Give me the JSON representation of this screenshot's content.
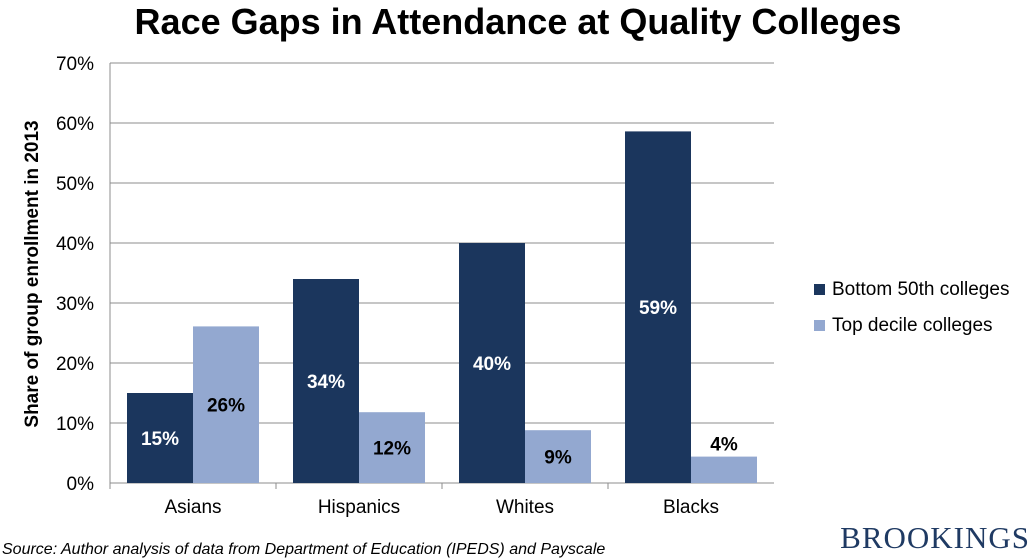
{
  "chart_data": {
    "type": "bar",
    "title": "Race Gaps in Attendance at Quality Colleges",
    "ylabel": "Share of group enrollment in 2013",
    "xlabel": "",
    "categories": [
      "Asians",
      "Hispanics",
      "Whites",
      "Blacks"
    ],
    "series": [
      {
        "name": "Bottom 50th colleges",
        "values": [
          15,
          34,
          40,
          58.6
        ],
        "labels": [
          "15%",
          "34%",
          "40%",
          "59%"
        ],
        "color": "#1b365d",
        "label_color": "#ffffff"
      },
      {
        "name": "Top decile colleges",
        "values": [
          26.1,
          11.8,
          8.8,
          4.4
        ],
        "labels": [
          "26%",
          "12%",
          "9%",
          "4%"
        ],
        "color": "#93a8d0",
        "label_color": "#000000"
      }
    ],
    "ylim": [
      0,
      70
    ],
    "yticks": [
      0,
      10,
      20,
      30,
      40,
      50,
      60,
      70
    ],
    "ytick_labels": [
      "0%",
      "10%",
      "20%",
      "30%",
      "40%",
      "50%",
      "60%",
      "70%"
    ],
    "grid": true,
    "legend_position": "right"
  },
  "source_text": "Source: Author analysis of data from Department of Education (IPEDS) and Payscale",
  "brand_text": "BROOKINGS"
}
